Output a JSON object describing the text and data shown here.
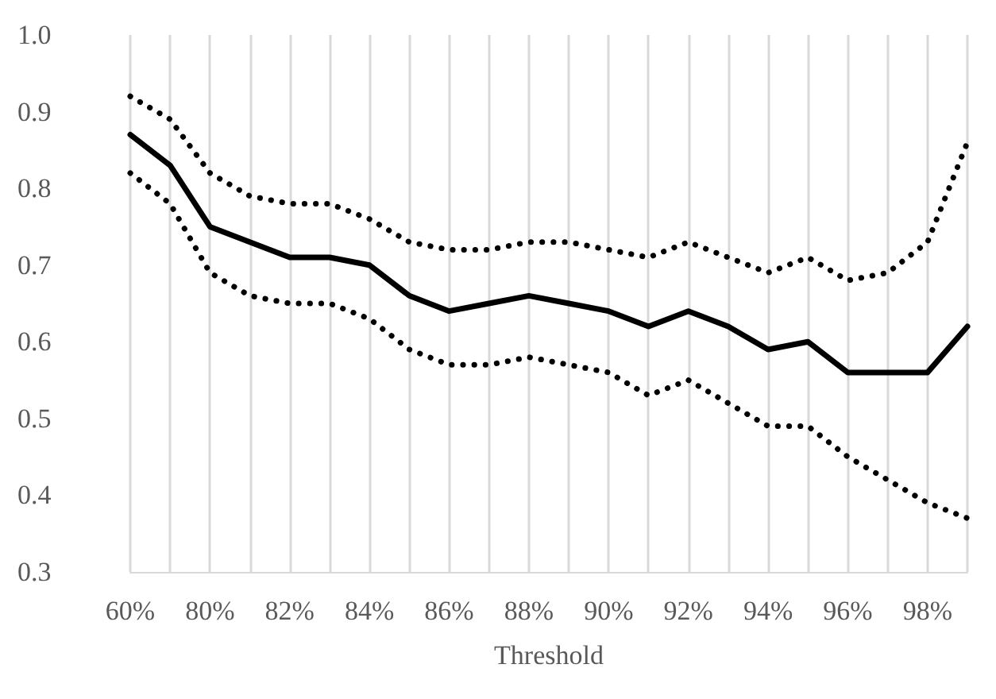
{
  "chart_data": {
    "type": "line",
    "xlabel": "Threshold",
    "categories": [
      "60%",
      null,
      "80%",
      null,
      "82%",
      null,
      "84%",
      null,
      "86%",
      null,
      "88%",
      null,
      "90%",
      null,
      "92%",
      null,
      "94%",
      null,
      "96%",
      null,
      "98%",
      null
    ],
    "series": [
      {
        "color": "#000000",
        "line_style": "dotted",
        "values": [
          0.92,
          0.89,
          0.82,
          0.79,
          0.78,
          0.78,
          0.76,
          0.73,
          0.72,
          0.72,
          0.73,
          0.73,
          0.72,
          0.71,
          0.73,
          0.71,
          0.69,
          0.71,
          0.68,
          0.69,
          0.73,
          0.86
        ]
      },
      {
        "color": "#000000",
        "line_style": "solid",
        "values": [
          0.87,
          0.83,
          0.75,
          0.73,
          0.71,
          0.71,
          0.7,
          0.66,
          0.64,
          0.65,
          0.66,
          0.65,
          0.64,
          0.62,
          0.64,
          0.62,
          0.59,
          0.6,
          0.56,
          0.56,
          0.56,
          0.62
        ]
      },
      {
        "color": "#000000",
        "line_style": "dotted",
        "values": [
          0.82,
          0.78,
          0.69,
          0.66,
          0.65,
          0.65,
          0.63,
          0.59,
          0.57,
          0.57,
          0.58,
          0.57,
          0.56,
          0.53,
          0.55,
          0.52,
          0.49,
          0.49,
          0.45,
          0.42,
          0.39,
          0.37
        ]
      }
    ],
    "ylim": [
      0.3,
      1.0
    ],
    "yticks": [
      {
        "value": 0.3,
        "label": "0.3"
      },
      {
        "value": 0.4,
        "label": "0.4"
      },
      {
        "value": 0.5,
        "label": "0.5"
      },
      {
        "value": 0.6,
        "label": "0.6"
      },
      {
        "value": 0.7,
        "label": "0.7"
      },
      {
        "value": 0.8,
        "label": "0.8"
      },
      {
        "value": 0.9,
        "label": "0.9"
      },
      {
        "value": 1.0,
        "label": "1.0"
      }
    ],
    "grid": "x",
    "marker": "none"
  }
}
